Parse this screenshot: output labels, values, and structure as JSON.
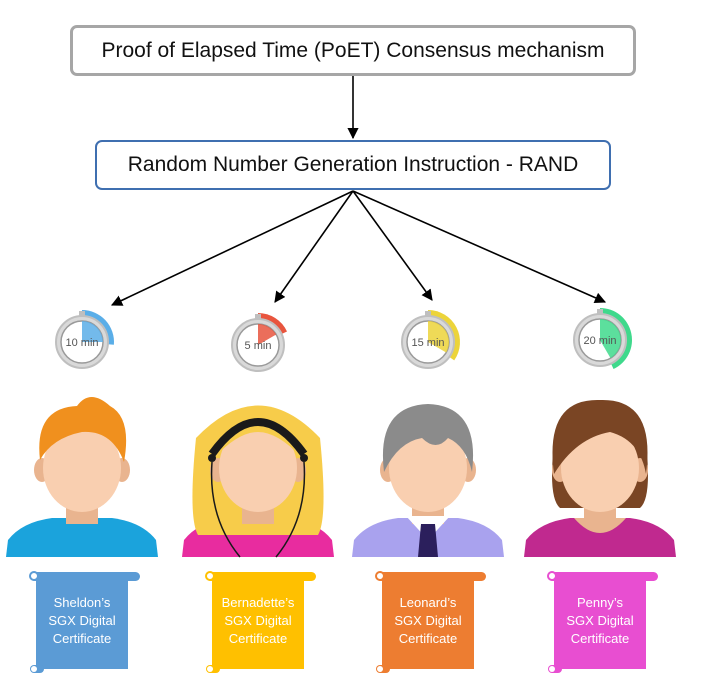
{
  "top_box": {
    "label": "Proof of Elapsed Time (PoET) Consensus mechanism"
  },
  "mid_box": {
    "label": "Random Number Generation Instruction - RAND"
  },
  "participants": [
    {
      "name": "Sheldon",
      "timer": {
        "label": "10 min",
        "minutes": 10,
        "color": "#5aaee8"
      },
      "certificate": {
        "line1": "Sheldon’s",
        "line2": "SGX Digital",
        "line3": "Certificate",
        "color": "#5b9bd5"
      },
      "hair_color": "#f0901e",
      "shirt_color": "#1ba3dc"
    },
    {
      "name": "Bernadette",
      "timer": {
        "label": "5 min",
        "minutes": 5,
        "color": "#e8553e"
      },
      "certificate": {
        "line1": "Bernadette’s",
        "line2": "SGX Digital",
        "line3": "Certificate",
        "color": "#ffc000"
      },
      "hair_color": "#f7cc4a",
      "shirt_color": "#e82c9f"
    },
    {
      "name": "Leonard",
      "timer": {
        "label": "15 min",
        "minutes": 15,
        "color": "#ecd43a"
      },
      "certificate": {
        "line1": "Leonard’s",
        "line2": "SGX Digital",
        "line3": "Certificate",
        "color": "#ed7d31"
      },
      "hair_color": "#8b8b8b",
      "shirt_color": "#a9a2ee"
    },
    {
      "name": "Penny",
      "timer": {
        "label": "20 min",
        "minutes": 20,
        "color": "#3fd98c"
      },
      "certificate": {
        "line1": "Penny’s",
        "line2": "SGX Digital",
        "line3": "Certificate",
        "color": "#e84ed1"
      },
      "hair_color": "#7a4524",
      "shirt_color": "#c0298f"
    }
  ]
}
